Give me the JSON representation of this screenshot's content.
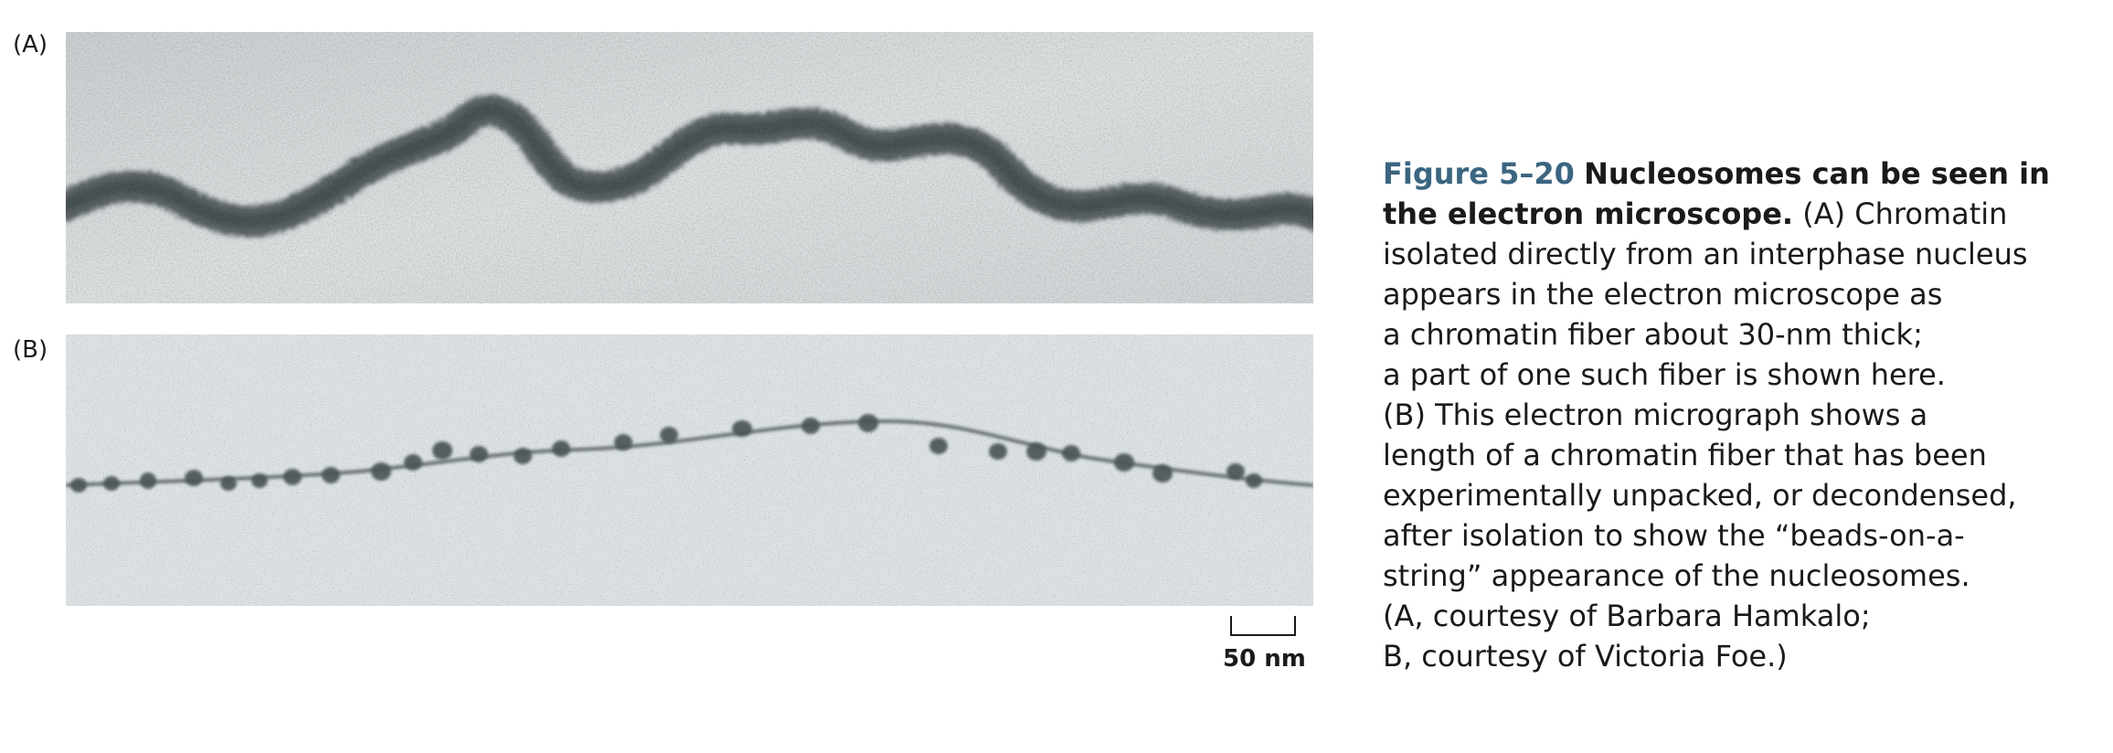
{
  "panels": {
    "a_label": "(A)",
    "b_label": "(B)"
  },
  "scale_bar": {
    "label": "50 nm"
  },
  "caption": {
    "figure_number": "Figure 5–20",
    "title_part1": "Nucleosomes can be seen in",
    "title_part2": "the electron microscope.",
    "line2_rest": "(A) Chromatin",
    "lines": [
      "isolated directly from an interphase nucleus",
      "appears in the electron microscope as",
      "a chromatin fiber about 30-nm thick;",
      "a part of one such fiber is shown here.",
      "(B) This electron micrograph shows a",
      "length of a chromatin fiber that has been",
      "experimentally unpacked, or decondensed,",
      "after isolation to show the “beads-on-a-",
      "string” appearance of the nucleosomes.",
      "(A, courtesy of Barbara Hamkalo;",
      "B, courtesy of Victoria Foe.)"
    ]
  },
  "colors": {
    "figure_number": "#3b6580",
    "text": "#1a1a1a"
  }
}
